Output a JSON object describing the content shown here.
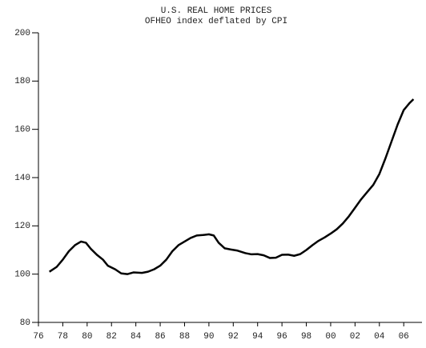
{
  "chart_data": {
    "type": "line",
    "title": "U.S. REAL HOME PRICES",
    "subtitle": "OFHEO index deflated by CPI",
    "x": [
      1976.9,
      1977.5,
      1978,
      1978.5,
      1979,
      1979.5,
      1979.9,
      1980.3,
      1980.8,
      1981.3,
      1981.7,
      1982.3,
      1982.8,
      1983.3,
      1983.8,
      1984.5,
      1985,
      1985.5,
      1986,
      1986.5,
      1987,
      1987.5,
      1988,
      1988.5,
      1989,
      1989.5,
      1990,
      1990.4,
      1990.8,
      1991.3,
      1991.8,
      1992.3,
      1993,
      1993.5,
      1994,
      1994.5,
      1995,
      1995.5,
      1996,
      1996.5,
      1997,
      1997.5,
      1998,
      1998.5,
      1999,
      1999.5,
      2000,
      2000.5,
      2001,
      2001.5,
      2002,
      2002.5,
      2003,
      2003.5,
      2004,
      2004.5,
      2005,
      2005.5,
      2006,
      2006.5,
      2006.8
    ],
    "values": [
      101,
      103,
      106,
      109.5,
      112,
      113.5,
      113,
      110.5,
      108,
      106,
      103.5,
      102,
      100.3,
      100,
      100.7,
      100.5,
      101,
      102,
      103.5,
      106,
      109.5,
      112,
      113.5,
      115,
      116,
      116.2,
      116.5,
      116,
      113,
      110.7,
      110.2,
      109.8,
      108.7,
      108.2,
      108.3,
      107.8,
      106.7,
      106.8,
      108,
      108.1,
      107.6,
      108.3,
      110,
      112,
      113.8,
      115.2,
      116.8,
      118.6,
      121,
      124,
      127.5,
      131,
      134,
      137,
      141.5,
      148,
      155,
      162,
      168,
      171,
      172.5
    ],
    "color": "#000000",
    "xlim": [
      1976,
      2007.5
    ],
    "ylim": [
      80,
      200
    ],
    "xticks": [
      {
        "value": 1976,
        "label": "76"
      },
      {
        "value": 1978,
        "label": "78"
      },
      {
        "value": 1980,
        "label": "80"
      },
      {
        "value": 1982,
        "label": "82"
      },
      {
        "value": 1984,
        "label": "84"
      },
      {
        "value": 1986,
        "label": "86"
      },
      {
        "value": 1988,
        "label": "88"
      },
      {
        "value": 1990,
        "label": "90"
      },
      {
        "value": 1992,
        "label": "92"
      },
      {
        "value": 1994,
        "label": "94"
      },
      {
        "value": 1996,
        "label": "96"
      },
      {
        "value": 1998,
        "label": "98"
      },
      {
        "value": 2000,
        "label": "00"
      },
      {
        "value": 2002,
        "label": "02"
      },
      {
        "value": 2004,
        "label": "04"
      },
      {
        "value": 2006,
        "label": "06"
      }
    ],
    "yticks": [
      80,
      100,
      120,
      140,
      160,
      180,
      200
    ]
  }
}
